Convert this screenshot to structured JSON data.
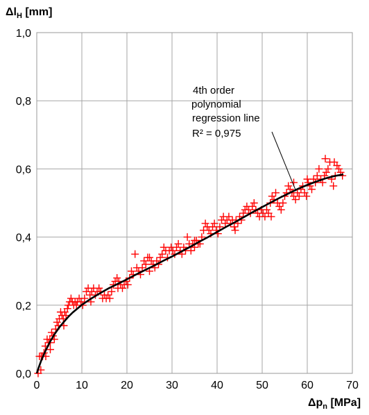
{
  "chart_data": {
    "type": "scatter",
    "title": "",
    "ylabel": {
      "main": "Δl",
      "sub": "H",
      "unit": " [mm]"
    },
    "xlabel": {
      "main": "Δp",
      "sub": "n",
      "unit": " [MPa]"
    },
    "xlim": [
      0,
      70
    ],
    "ylim": [
      0,
      1.0
    ],
    "x_ticks": [
      0,
      10,
      20,
      30,
      40,
      50,
      60,
      70
    ],
    "x_tick_labels": [
      "0",
      "10",
      "20",
      "30",
      "40",
      "50",
      "60",
      "70"
    ],
    "y_ticks": [
      0,
      0.2,
      0.4,
      0.6,
      0.8,
      1.0
    ],
    "y_tick_labels": [
      "0,0",
      "0,2",
      "0,4",
      "0,6",
      "0,8",
      "1,0"
    ],
    "grid": true,
    "marker_color": "#ff0000",
    "line_color": "#000000",
    "series": [
      {
        "marker": "plus",
        "points": [
          [
            0.3,
            0.0
          ],
          [
            0.6,
            0.05
          ],
          [
            0.9,
            0.01
          ],
          [
            1.0,
            0.05
          ],
          [
            1.3,
            0.05
          ],
          [
            1.6,
            0.06
          ],
          [
            1.9,
            0.08
          ],
          [
            2.0,
            0.05
          ],
          [
            2.3,
            0.1
          ],
          [
            2.6,
            0.09
          ],
          [
            2.9,
            0.1
          ],
          [
            3.0,
            0.07
          ],
          [
            3.3,
            0.12
          ],
          [
            3.6,
            0.11
          ],
          [
            3.9,
            0.1
          ],
          [
            4.2,
            0.13
          ],
          [
            4.5,
            0.15
          ],
          [
            4.8,
            0.14
          ],
          [
            5.0,
            0.16
          ],
          [
            5.3,
            0.18
          ],
          [
            5.6,
            0.17
          ],
          [
            5.9,
            0.16
          ],
          [
            6.2,
            0.18
          ],
          [
            6.5,
            0.17
          ],
          [
            6.8,
            0.19
          ],
          [
            7.0,
            0.2
          ],
          [
            7.3,
            0.21
          ],
          [
            7.6,
            0.22
          ],
          [
            7.9,
            0.21
          ],
          [
            8.2,
            0.2
          ],
          [
            8.5,
            0.21
          ],
          [
            8.8,
            0.2
          ],
          [
            9.0,
            0.21
          ],
          [
            9.4,
            0.22
          ],
          [
            9.8,
            0.21
          ],
          [
            10.2,
            0.2
          ],
          [
            10.6,
            0.22
          ],
          [
            11.0,
            0.24
          ],
          [
            11.4,
            0.25
          ],
          [
            11.8,
            0.23
          ],
          [
            12.2,
            0.24
          ],
          [
            12.6,
            0.25
          ],
          [
            13.0,
            0.23
          ],
          [
            13.4,
            0.24
          ],
          [
            13.8,
            0.25
          ],
          [
            14.2,
            0.24
          ],
          [
            14.6,
            0.22
          ],
          [
            15.0,
            0.23
          ],
          [
            15.4,
            0.22
          ],
          [
            15.8,
            0.23
          ],
          [
            16.2,
            0.22
          ],
          [
            16.6,
            0.24
          ],
          [
            17.0,
            0.26
          ],
          [
            17.4,
            0.27
          ],
          [
            17.8,
            0.28
          ],
          [
            18.2,
            0.27
          ],
          [
            18.6,
            0.26
          ],
          [
            19.0,
            0.25
          ],
          [
            19.4,
            0.26
          ],
          [
            19.8,
            0.27
          ],
          [
            20.2,
            0.26
          ],
          [
            20.6,
            0.28
          ],
          [
            21.0,
            0.3
          ],
          [
            21.4,
            0.29
          ],
          [
            21.8,
            0.35
          ],
          [
            22.2,
            0.31
          ],
          [
            22.6,
            0.3
          ],
          [
            23.0,
            0.29
          ],
          [
            23.4,
            0.31
          ],
          [
            23.8,
            0.33
          ],
          [
            24.2,
            0.32
          ],
          [
            24.6,
            0.34
          ],
          [
            25.0,
            0.34
          ],
          [
            25.4,
            0.33
          ],
          [
            25.8,
            0.32
          ],
          [
            26.2,
            0.31
          ],
          [
            26.6,
            0.33
          ],
          [
            27.0,
            0.32
          ],
          [
            27.4,
            0.34
          ],
          [
            27.8,
            0.35
          ],
          [
            28.2,
            0.37
          ],
          [
            28.6,
            0.36
          ],
          [
            29.0,
            0.34
          ],
          [
            29.4,
            0.36
          ],
          [
            29.8,
            0.37
          ],
          [
            30.2,
            0.36
          ],
          [
            30.6,
            0.35
          ],
          [
            31.0,
            0.37
          ],
          [
            31.4,
            0.38
          ],
          [
            31.8,
            0.36
          ],
          [
            32.2,
            0.35
          ],
          [
            32.6,
            0.37
          ],
          [
            33.0,
            0.36
          ],
          [
            33.4,
            0.4
          ],
          [
            33.8,
            0.38
          ],
          [
            34.2,
            0.36
          ],
          [
            34.6,
            0.38
          ],
          [
            35.0,
            0.37
          ],
          [
            35.4,
            0.39
          ],
          [
            35.8,
            0.38
          ],
          [
            36.2,
            0.38
          ],
          [
            36.6,
            0.4
          ],
          [
            37.0,
            0.42
          ],
          [
            37.4,
            0.44
          ],
          [
            37.8,
            0.43
          ],
          [
            38.2,
            0.42
          ],
          [
            38.6,
            0.41
          ],
          [
            39.0,
            0.43
          ],
          [
            39.4,
            0.44
          ],
          [
            39.8,
            0.42
          ],
          [
            40.2,
            0.41
          ],
          [
            40.6,
            0.43
          ],
          [
            41.0,
            0.45
          ],
          [
            41.4,
            0.46
          ],
          [
            41.8,
            0.44
          ],
          [
            42.2,
            0.45
          ],
          [
            42.6,
            0.46
          ],
          [
            43.0,
            0.44
          ],
          [
            43.4,
            0.45
          ],
          [
            43.8,
            0.43
          ],
          [
            44.2,
            0.45
          ],
          [
            44.6,
            0.44
          ],
          [
            45.0,
            0.46
          ],
          [
            45.4,
            0.45
          ],
          [
            45.8,
            0.47
          ],
          [
            46.2,
            0.48
          ],
          [
            46.6,
            0.49
          ],
          [
            47.0,
            0.48
          ],
          [
            47.4,
            0.47
          ],
          [
            47.8,
            0.49
          ],
          [
            48.2,
            0.5
          ],
          [
            48.6,
            0.48
          ],
          [
            49.0,
            0.47
          ],
          [
            49.4,
            0.46
          ],
          [
            49.8,
            0.48
          ],
          [
            50.2,
            0.47
          ],
          [
            50.6,
            0.46
          ],
          [
            51.0,
            0.48
          ],
          [
            51.4,
            0.47
          ],
          [
            51.8,
            0.5
          ],
          [
            52.2,
            0.52
          ],
          [
            52.6,
            0.51
          ],
          [
            53.0,
            0.53
          ],
          [
            53.4,
            0.5
          ],
          [
            53.8,
            0.49
          ],
          [
            54.2,
            0.48
          ],
          [
            54.6,
            0.5
          ],
          [
            55.0,
            0.52
          ],
          [
            55.4,
            0.53
          ],
          [
            55.8,
            0.55
          ],
          [
            56.2,
            0.54
          ],
          [
            56.6,
            0.53
          ],
          [
            57.0,
            0.52
          ],
          [
            57.4,
            0.51
          ],
          [
            57.8,
            0.53
          ],
          [
            58.2,
            0.52
          ],
          [
            58.6,
            0.54
          ],
          [
            59.0,
            0.55
          ],
          [
            59.4,
            0.53
          ],
          [
            59.8,
            0.52
          ],
          [
            60.2,
            0.56
          ],
          [
            60.6,
            0.55
          ],
          [
            61.0,
            0.54
          ],
          [
            61.4,
            0.57
          ],
          [
            61.8,
            0.56
          ],
          [
            62.2,
            0.58
          ],
          [
            62.6,
            0.6
          ],
          [
            63.0,
            0.57
          ],
          [
            63.4,
            0.56
          ],
          [
            63.8,
            0.58
          ],
          [
            64.2,
            0.59
          ],
          [
            64.6,
            0.6
          ],
          [
            65.0,
            0.62
          ],
          [
            65.4,
            0.57
          ],
          [
            65.8,
            0.55
          ],
          [
            66.2,
            0.58
          ],
          [
            66.6,
            0.61
          ],
          [
            67.0,
            0.6
          ],
          [
            67.4,
            0.59
          ],
          [
            67.8,
            0.58
          ],
          [
            64.0,
            0.63
          ],
          [
            66.0,
            0.62
          ],
          [
            57.0,
            0.56
          ],
          [
            44.0,
            0.42
          ],
          [
            18.0,
            0.25
          ],
          [
            12.0,
            0.21
          ],
          [
            25.0,
            0.3
          ],
          [
            35.0,
            0.39
          ],
          [
            52.0,
            0.46
          ],
          [
            60.0,
            0.57
          ],
          [
            3.0,
            0.09
          ],
          [
            6.0,
            0.14
          ]
        ]
      },
      {
        "type": "line",
        "marker": "none",
        "x": [
          0,
          0.5,
          1,
          2,
          3,
          4,
          5,
          6,
          7,
          8,
          9,
          10,
          12,
          14,
          16,
          18,
          20,
          22,
          24,
          26,
          28,
          30,
          32,
          34,
          36,
          38,
          40,
          42,
          44,
          46,
          48,
          50,
          52,
          54,
          56,
          58,
          60,
          62,
          64,
          66,
          68
        ],
        "y": [
          0,
          0.02,
          0.038,
          0.068,
          0.094,
          0.116,
          0.135,
          0.151,
          0.166,
          0.179,
          0.19,
          0.201,
          0.219,
          0.235,
          0.25,
          0.263,
          0.276,
          0.29,
          0.303,
          0.316,
          0.33,
          0.343,
          0.357,
          0.371,
          0.386,
          0.4,
          0.415,
          0.43,
          0.444,
          0.459,
          0.474,
          0.488,
          0.502,
          0.516,
          0.529,
          0.542,
          0.553,
          0.563,
          0.572,
          0.579,
          0.584
        ]
      }
    ],
    "annotation": {
      "lines": [
        "4th order",
        "polynomial",
        "regression line",
        "R² = 0,975"
      ],
      "arrow_to": [
        57.5,
        0.535
      ]
    }
  }
}
